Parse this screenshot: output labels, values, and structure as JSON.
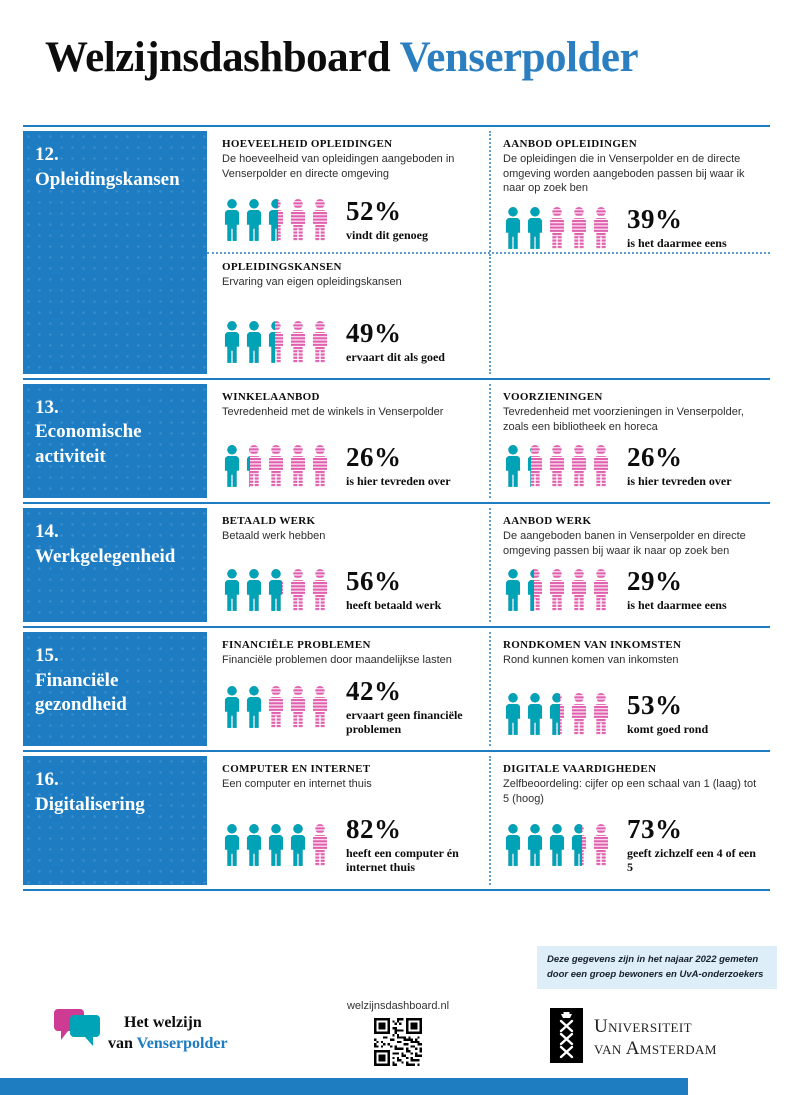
{
  "title": {
    "black": "Welzijnsdashboard",
    "blue": "Venserpolder"
  },
  "colors": {
    "accent_blue": "#1d7cc2",
    "title_blue": "#2b7fc0",
    "teal": "#00a3b5",
    "pink": "#e05fae",
    "dotted_blue": "#5b9dd0",
    "note_bg": "#ddeef9"
  },
  "sections": [
    {
      "number": "12.",
      "name": "Opleidingskansen",
      "rows": [
        [
          {
            "title": "HOEVEELHEID OPLEIDINGEN",
            "desc": "De hoeveelheid van opleidingen aangeboden in Venserpolder en directe omgeving",
            "pct": 52,
            "value": "52%",
            "label": "vindt dit genoeg"
          },
          {
            "title": "AANBOD OPLEIDINGEN",
            "desc": "De opleidingen die in Venserpolder en de directe omgeving worden aangeboden passen bij waar ik naar op zoek ben",
            "pct": 39,
            "value": "39%",
            "label": "is het daarmee eens"
          }
        ],
        [
          {
            "title": "OPLEIDINGSKANSEN",
            "desc": "Ervaring van eigen opleidingskansen",
            "pct": 49,
            "value": "49%",
            "label": "ervaart dit als goed"
          },
          null
        ]
      ]
    },
    {
      "number": "13.",
      "name": "Economische activiteit",
      "rows": [
        [
          {
            "title": "WINKELAANBOD",
            "desc": "Tevredenheid met de winkels in Venserpolder",
            "pct": 26,
            "value": "26%",
            "label": "is hier tevreden over"
          },
          {
            "title": "VOORZIENINGEN",
            "desc": "Tevredenheid met voorzieningen in Venserpolder, zoals een bibliotheek en horeca",
            "pct": 26,
            "value": "26%",
            "label": "is hier tevreden over"
          }
        ]
      ]
    },
    {
      "number": "14.",
      "name": "Werkgelegenheid",
      "rows": [
        [
          {
            "title": "BETAALD WERK",
            "desc": "Betaald werk hebben",
            "pct": 56,
            "value": "56%",
            "label": "heeft betaald werk"
          },
          {
            "title": "AANBOD WERK",
            "desc": "De aangeboden banen in Venserpolder en directe omgeving passen bij waar ik naar op zoek ben",
            "pct": 29,
            "value": "29%",
            "label": "is het daarmee eens"
          }
        ]
      ]
    },
    {
      "number": "15.",
      "name": "Financiële gezondheid",
      "rows": [
        [
          {
            "title": "FINANCIËLE PROBLEMEN",
            "desc": "Financiële problemen door maandelijkse lasten",
            "pct": 42,
            "value": "42%",
            "label": "ervaart geen financiële problemen"
          },
          {
            "title": "RONDKOMEN VAN INKOMSTEN",
            "desc": "Rond kunnen komen van inkomsten",
            "pct": 53,
            "value": "53%",
            "label": "komt goed rond"
          }
        ]
      ]
    },
    {
      "number": "16.",
      "name": "Digitalisering",
      "rows": [
        [
          {
            "title": "COMPUTER EN INTERNET",
            "desc": "Een computer en internet thuis",
            "pct": 82,
            "value": "82%",
            "label": "heeft een computer én internet thuis"
          },
          {
            "title": "DIGITALE VAARDIGHEDEN",
            "desc": "Zelfbeoordeling: cijfer op een schaal van 1 (laag) tot 5 (hoog)",
            "pct": 73,
            "value": "73%",
            "label": "geeft zichzelf een 4 of een 5"
          }
        ]
      ]
    }
  ],
  "chart_data": {
    "type": "bar",
    "title": "Welzijnsdashboard Venserpolder",
    "categories": [
      "Hoeveelheid opleidingen",
      "Aanbod opleidingen",
      "Opleidingskansen",
      "Winkelaanbod",
      "Voorzieningen",
      "Betaald werk",
      "Aanbod werk",
      "Financiële problemen",
      "Rondkomen van inkomsten",
      "Computer en internet",
      "Digitale vaardigheden"
    ],
    "values": [
      52,
      39,
      49,
      26,
      26,
      56,
      29,
      42,
      53,
      82,
      73
    ],
    "ylabel": "percentage",
    "ylim": [
      0,
      100
    ]
  },
  "footer": {
    "note_line1": "Deze gegevens zijn in het najaar 2022 gemeten",
    "note_line2": "door een groep bewoners en UvA-onderzoekers",
    "brand_line1": "Het welzijn",
    "brand_line2_black": "van",
    "brand_line2_blue": "Venserpolder",
    "url": "welzijnsdashboard.nl",
    "uva_line1": "Universiteit",
    "uva_line2": "van Amsterdam"
  }
}
